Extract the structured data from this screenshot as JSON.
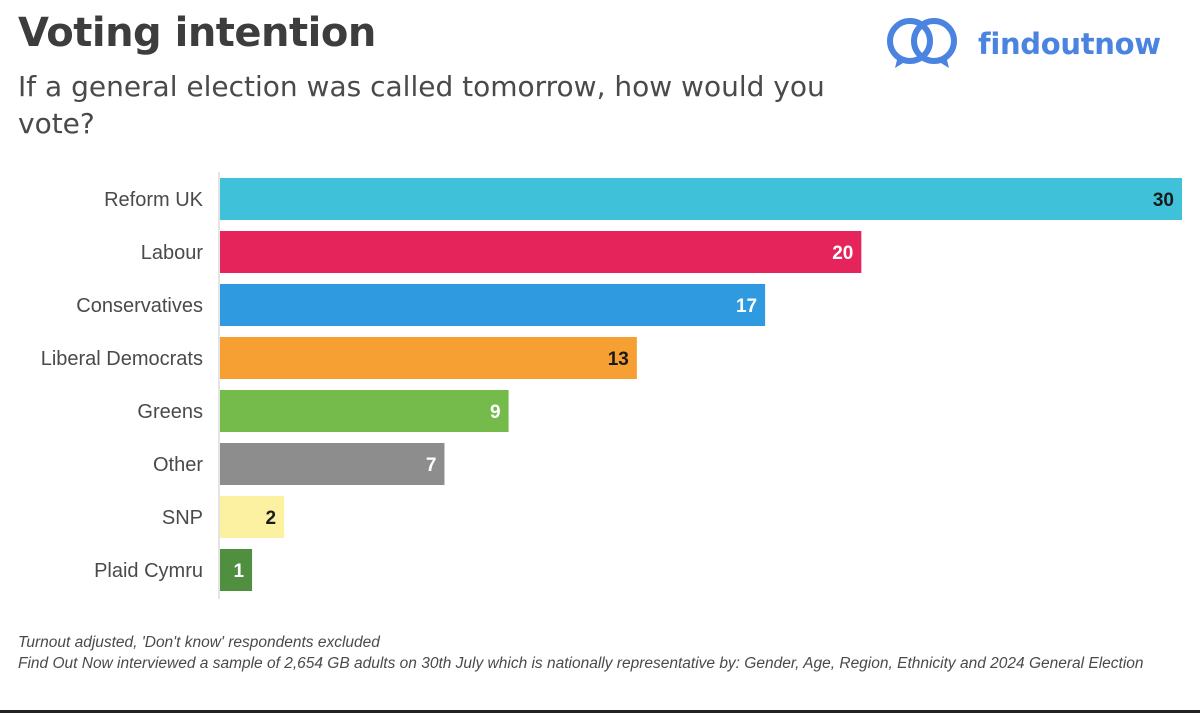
{
  "header": {
    "title": "Voting intention",
    "subtitle": "If a general election was called tomorrow, how would you vote?"
  },
  "logo": {
    "text": "findoutnow",
    "icon": "linked-speech-bubbles-icon",
    "color": "#4a84e0"
  },
  "chart_data": {
    "type": "bar",
    "orientation": "horizontal",
    "title": "",
    "xlabel": "",
    "ylabel": "",
    "xlim": [
      0,
      30
    ],
    "grid": false,
    "legend": "none",
    "categories": [
      "Reform UK",
      "Labour",
      "Conservatives",
      "Liberal Democrats",
      "Greens",
      "Other",
      "SNP",
      "Plaid Cymru"
    ],
    "values": [
      30,
      20,
      17,
      13,
      9,
      7,
      2,
      1
    ],
    "colors": [
      "#3ec1d9",
      "#e4245a",
      "#2f9ae0",
      "#f6a033",
      "#75bb4c",
      "#8d8d8d",
      "#fcf1a0",
      "#4f8f3f"
    ],
    "label_colors": [
      "#1a1a1a",
      "#ffffff",
      "#ffffff",
      "#1a1a1a",
      "#ffffff",
      "#ffffff",
      "#1a1a1a",
      "#ffffff"
    ]
  },
  "footnote": {
    "line1": "Turnout adjusted, 'Don't know' respondents excluded",
    "line2": "Find Out Now interviewed a sample of 2,654 GB adults on 30th July which is nationally representative by: Gender, Age, Region, Ethnicity and 2024 General Election"
  }
}
